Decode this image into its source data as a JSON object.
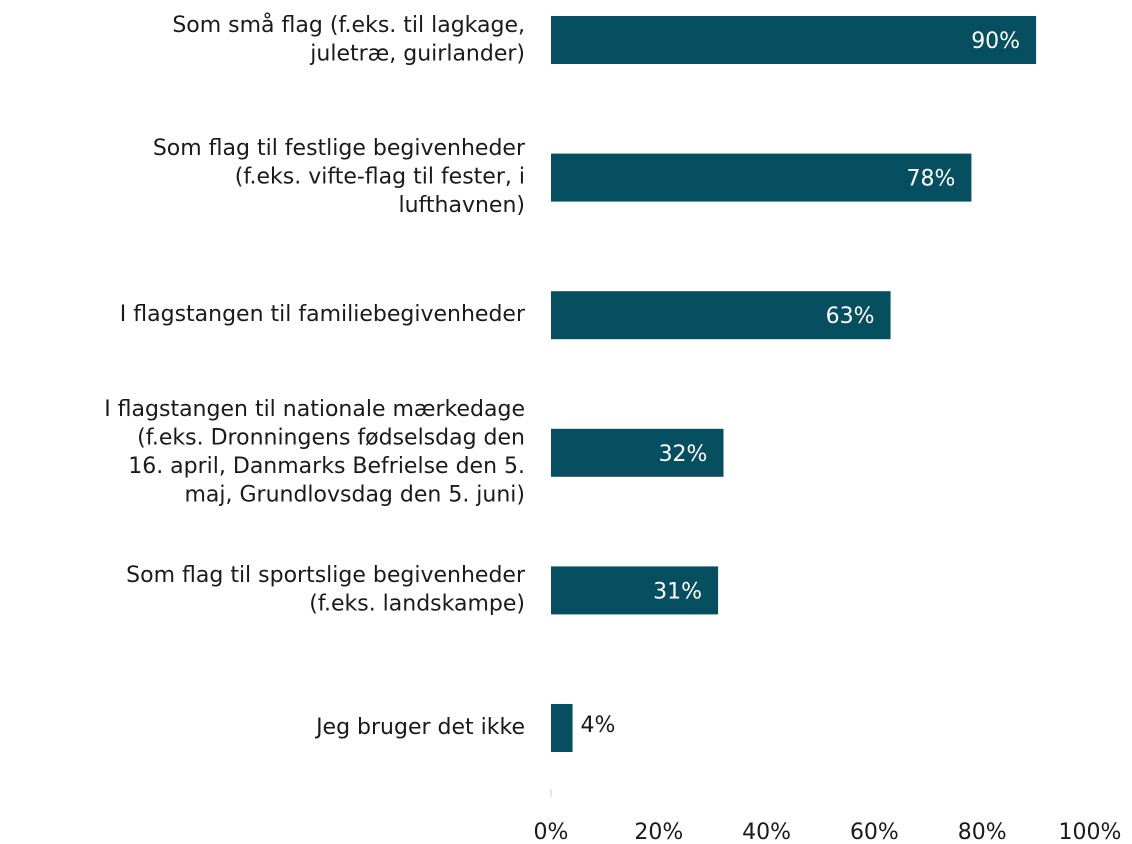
{
  "chart_data": {
    "type": "bar",
    "orientation": "horizontal",
    "categories": [
      [
        "Som små flag (f.eks. til lagkage,",
        "juletræ, guirlander)"
      ],
      [
        "Som flag til festlige begivenheder",
        "(f.eks. vifte-flag til fester, i",
        "lufthavnen)"
      ],
      [
        "I flagstangen til familiebegivenheder"
      ],
      [
        "I flagstangen til nationale mærkedage",
        "(f.eks. Dronningens fødselsdag den",
        "16. april, Danmarks Befrielse den 5.",
        "maj, Grundlovsdag den 5. juni)"
      ],
      [
        "Som flag til sportslige begivenheder",
        "(f.eks. landskampe)"
      ],
      [
        "Jeg bruger det ikke"
      ]
    ],
    "values": [
      90,
      78,
      63,
      32,
      31,
      4
    ],
    "value_labels": [
      "90%",
      "78%",
      "63%",
      "32%",
      "31%",
      "4%"
    ],
    "color": "#064f61",
    "xlim": [
      0,
      100
    ],
    "xticks": [
      {
        "value": 0,
        "label": "0%"
      },
      {
        "value": 20,
        "label": "20%"
      },
      {
        "value": 40,
        "label": "40%"
      },
      {
        "value": 60,
        "label": "60%"
      },
      {
        "value": 80,
        "label": "80%"
      },
      {
        "value": 100,
        "label": "100%"
      }
    ],
    "grid": false
  }
}
